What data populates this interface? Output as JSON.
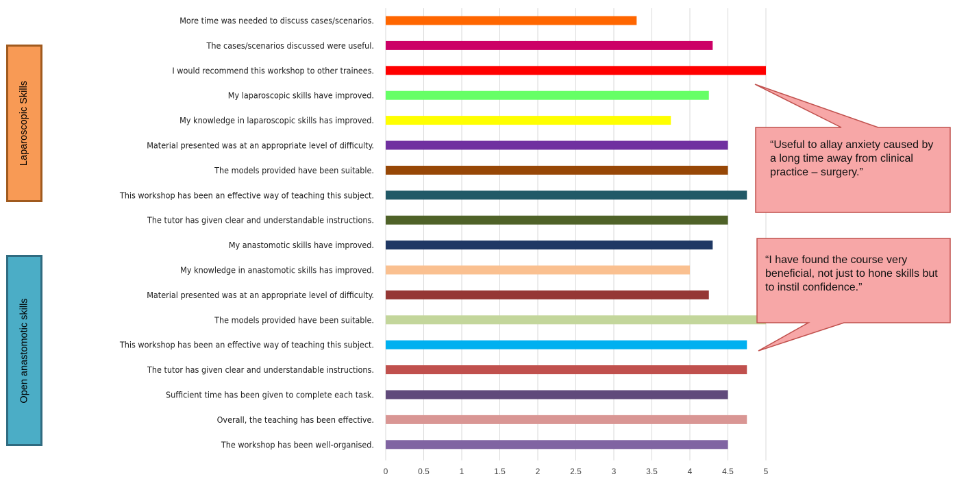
{
  "sections": {
    "laparoscopic": "Laparoscopic Skills",
    "open": "Open anastomotic skills"
  },
  "callouts": [
    {
      "text": "“Useful to allay anxiety caused by a long time away from clinical practice – surgery.”"
    },
    {
      "text": "“I have found the course very beneficial, not just to hone skills but to instil confidence.”"
    }
  ],
  "colors": {
    "callout_fill": "#f7a7a7",
    "callout_border": "#c0504d",
    "gridline": "#d9d9d9"
  },
  "chart_data": {
    "type": "bar",
    "orientation": "horizontal",
    "title": "",
    "xlabel": "",
    "ylabel": "",
    "xlim": [
      0,
      5
    ],
    "xticks": [
      0,
      0.5,
      1,
      1.5,
      2,
      2.5,
      3,
      3.5,
      4,
      4.5,
      5
    ],
    "grid": true,
    "categories": [
      "More time was needed to discuss cases/scenarios.",
      "The cases/scenarios discussed were useful.",
      "I would recommend this workshop to other trainees.",
      "My laparoscopic skills have improved.",
      "My knowledge in laparoscopic skills has improved.",
      "Material presented was at an appropriate level of difficulty.",
      "The models provided have been suitable.",
      "This workshop has been an effective way of teaching this subject.",
      "The tutor has given clear and understandable instructions.",
      "My anastomotic skills have improved.",
      "My knowledge in anastomotic skills has improved.",
      "Material presented was at an appropriate level of difficulty.",
      "The models provided have been suitable.",
      "This workshop has been an effective way of teaching this subject.",
      "The tutor has given clear and understandable instructions.",
      "Sufficient time has been given to complete each task.",
      "Overall, the teaching has been effective.",
      "The workshop has been well-organised."
    ],
    "values": [
      3.3,
      4.3,
      5,
      4.25,
      3.75,
      4.5,
      4.5,
      4.75,
      4.5,
      4.3,
      4,
      4.25,
      5,
      4.75,
      4.75,
      4.5,
      4.75,
      4.5
    ],
    "colors": [
      "#ff6600",
      "#cc0066",
      "#ff0000",
      "#66ff66",
      "#ffff00",
      "#7030a0",
      "#974706",
      "#215967",
      "#4f6228",
      "#1f3864",
      "#fac090",
      "#953735",
      "#c3d69b",
      "#00b0f0",
      "#c0504d",
      "#604a7b",
      "#d99694",
      "#8064a2"
    ]
  }
}
